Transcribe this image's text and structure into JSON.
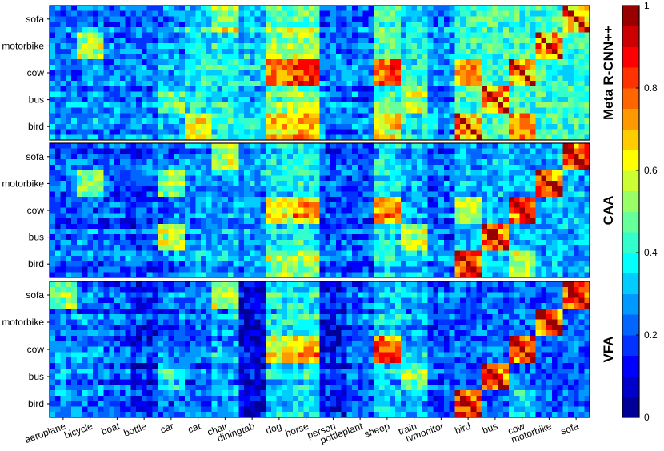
{
  "chart_data": [
    {
      "type": "heatmap",
      "title": "",
      "panel_label": "Meta R-CNN++",
      "x_tick_labels": [],
      "y_tick_labels": [
        "sofa",
        "motorbike",
        "cow",
        "bus",
        "bird"
      ],
      "block_labels": [
        "aeroplane",
        "bicycle",
        "boat",
        "bottle",
        "car",
        "cat",
        "chair",
        "diningtab",
        "dog",
        "horse",
        "person",
        "pottleplant",
        "sheep",
        "train",
        "tvmonitor",
        "bird",
        "bus",
        "cow",
        "motorbike",
        "sofa"
      ],
      "rows": 25,
      "cols": 100,
      "blocks": {
        "base": [
          0.24,
          0.25,
          0.24,
          0.24,
          0.27,
          0.36,
          0.38,
          0.33,
          0.5,
          0.52,
          0.24,
          0.23,
          0.46,
          0.36,
          0.26
        ],
        "novel_diagonal": 0.95,
        "novel_offdiagonal": 0.42,
        "highlights": [
          {
            "row_class": "sofa",
            "col_class": "chair",
            "value": 0.55
          },
          {
            "row_class": "motorbike",
            "col_class": "bicycle",
            "value": 0.55
          },
          {
            "row_class": "cow",
            "col_class": "dog",
            "value": 0.75
          },
          {
            "row_class": "cow",
            "col_class": "horse",
            "value": 0.8
          },
          {
            "row_class": "cow",
            "col_class": "sheep",
            "value": 0.8
          },
          {
            "row_class": "bird",
            "col_class": "dog",
            "value": 0.65
          },
          {
            "row_class": "bird",
            "col_class": "horse",
            "value": 0.68
          },
          {
            "row_class": "bird",
            "col_class": "cat",
            "value": 0.6
          },
          {
            "row_class": "bird",
            "col_class": "sheep",
            "value": 0.6
          },
          {
            "row_class": "bus",
            "col_class": "train",
            "value": 0.55
          },
          {
            "row_class": "bus",
            "col_class": "car",
            "value": 0.45
          },
          {
            "row_class": "bird",
            "col_class": "cow",
            "value": 0.72
          },
          {
            "row_class": "cow",
            "col_class": "bird",
            "value": 0.7
          }
        ]
      }
    },
    {
      "type": "heatmap",
      "title": "",
      "panel_label": "CAA",
      "x_tick_labels": [],
      "y_tick_labels": [
        "sofa",
        "motorbike",
        "cow",
        "bus",
        "bird"
      ],
      "block_labels": [
        "aeroplane",
        "bicycle",
        "boat",
        "bottle",
        "car",
        "cat",
        "chair",
        "diningtab",
        "dog",
        "horse",
        "person",
        "pottleplant",
        "sheep",
        "train",
        "tvmonitor",
        "bird",
        "bus",
        "cow",
        "motorbike",
        "sofa"
      ],
      "rows": 25,
      "cols": 100,
      "blocks": {
        "base": [
          0.22,
          0.22,
          0.21,
          0.2,
          0.24,
          0.28,
          0.3,
          0.27,
          0.36,
          0.38,
          0.21,
          0.2,
          0.34,
          0.3,
          0.22
        ],
        "novel_diagonal": 0.95,
        "novel_offdiagonal": 0.3,
        "highlights": [
          {
            "row_class": "sofa",
            "col_class": "chair",
            "value": 0.55
          },
          {
            "row_class": "motorbike",
            "col_class": "bicycle",
            "value": 0.5
          },
          {
            "row_class": "motorbike",
            "col_class": "car",
            "value": 0.5
          },
          {
            "row_class": "cow",
            "col_class": "dog",
            "value": 0.62
          },
          {
            "row_class": "cow",
            "col_class": "horse",
            "value": 0.72
          },
          {
            "row_class": "cow",
            "col_class": "sheep",
            "value": 0.75
          },
          {
            "row_class": "bird",
            "col_class": "dog",
            "value": 0.5
          },
          {
            "row_class": "bird",
            "col_class": "horse",
            "value": 0.5
          },
          {
            "row_class": "bus",
            "col_class": "train",
            "value": 0.55
          },
          {
            "row_class": "bus",
            "col_class": "car",
            "value": 0.55
          },
          {
            "row_class": "bird",
            "col_class": "cow",
            "value": 0.55
          },
          {
            "row_class": "cow",
            "col_class": "bird",
            "value": 0.55
          }
        ]
      }
    },
    {
      "type": "heatmap",
      "title": "",
      "panel_label": "VFA",
      "x_tick_labels": [
        "aeroplane",
        "bicycle",
        "boat",
        "bottle",
        "car",
        "cat",
        "chair",
        "diningtab",
        "dog",
        "horse",
        "person",
        "pottleplant",
        "sheep",
        "train",
        "tvmonitor",
        "bird",
        "bus",
        "cow",
        "motorbike",
        "sofa"
      ],
      "y_tick_labels": [
        "sofa",
        "motorbike",
        "cow",
        "bus",
        "bird"
      ],
      "block_labels": [
        "aeroplane",
        "bicycle",
        "boat",
        "bottle",
        "car",
        "cat",
        "chair",
        "diningtab",
        "dog",
        "horse",
        "person",
        "pottleplant",
        "sheep",
        "train",
        "tvmonitor",
        "bird",
        "bus",
        "cow",
        "motorbike",
        "sofa"
      ],
      "rows": 25,
      "cols": 100,
      "blocks": {
        "base": [
          0.26,
          0.25,
          0.22,
          0.16,
          0.24,
          0.24,
          0.3,
          0.1,
          0.36,
          0.38,
          0.14,
          0.22,
          0.34,
          0.3,
          0.22
        ],
        "novel_diagonal": 0.95,
        "novel_offdiagonal": 0.22,
        "highlights": [
          {
            "row_class": "sofa",
            "col_class": "chair",
            "value": 0.55
          },
          {
            "row_class": "sofa",
            "col_class": "aeroplane",
            "value": 0.5
          },
          {
            "row_class": "cow",
            "col_class": "dog",
            "value": 0.6
          },
          {
            "row_class": "cow",
            "col_class": "horse",
            "value": 0.7
          },
          {
            "row_class": "cow",
            "col_class": "sheep",
            "value": 0.8
          },
          {
            "row_class": "bus",
            "col_class": "train",
            "value": 0.5
          },
          {
            "row_class": "bus",
            "col_class": "car",
            "value": 0.4
          },
          {
            "row_class": "bird",
            "col_class": "cow",
            "value": 0.35
          }
        ]
      }
    }
  ],
  "colorbar": {
    "min": 0,
    "max": 1,
    "ticks": [
      0,
      0.2,
      0.4,
      0.6,
      0.8,
      1
    ],
    "tick_labels": [
      "0",
      "0.2",
      "0.4",
      "0.6",
      "0.8",
      "1"
    ],
    "colormap": "jet",
    "levels": 20
  }
}
